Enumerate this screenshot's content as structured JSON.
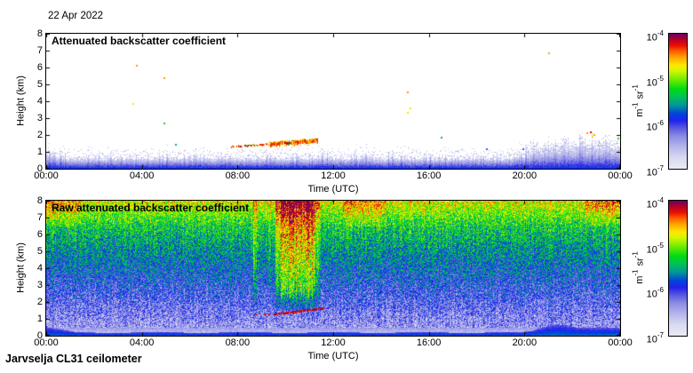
{
  "window": {
    "date_label": "22 Apr 2022",
    "footer_label": "Jarvselja CL31 ceilometer"
  },
  "axes": {
    "time": {
      "label": "Time (UTC)",
      "ticks": [
        "00:00",
        "04:00",
        "08:00",
        "12:00",
        "16:00",
        "20:00",
        "00:00"
      ]
    },
    "height": {
      "label": "Height (km)",
      "ticks": [
        "8",
        "7",
        "6",
        "5",
        "4",
        "3",
        "2",
        "1",
        "0"
      ]
    }
  },
  "colorbar": {
    "unit": {
      "m": "m",
      "m_exp": "-1",
      "sr": "sr",
      "sr_exp": "-1"
    },
    "ticks": [
      {
        "base": "10",
        "exp": "-4"
      },
      {
        "base": "10",
        "exp": "-5"
      },
      {
        "base": "10",
        "exp": "-6"
      },
      {
        "base": "10",
        "exp": "-7"
      }
    ]
  },
  "palette": {
    "colormap_stops": [
      [
        0.0,
        "#eaeaf6"
      ],
      [
        0.08,
        "#dadaf2"
      ],
      [
        0.16,
        "#b6b6ec"
      ],
      [
        0.24,
        "#8c8ce6"
      ],
      [
        0.3,
        "#5a5ae0"
      ],
      [
        0.355,
        "#2222f0"
      ],
      [
        0.41,
        "#0048d8"
      ],
      [
        0.47,
        "#009898"
      ],
      [
        0.53,
        "#00c05a"
      ],
      [
        0.59,
        "#00dc14"
      ],
      [
        0.66,
        "#6eec00"
      ],
      [
        0.73,
        "#d8f800"
      ],
      [
        0.77,
        "#ffe800"
      ],
      [
        0.83,
        "#ffa200"
      ],
      [
        0.875,
        "#ff5a00"
      ],
      [
        0.915,
        "#eb0f00"
      ],
      [
        0.96,
        "#b4002d"
      ],
      [
        1.0,
        "#70005f"
      ]
    ],
    "scatter_colors": {
      "orange": "#ff9800",
      "yellow": "#ffe000",
      "green": "#22cc22",
      "teal": "#00b090",
      "blue": "#3355ff",
      "red": "#e01000",
      "darkred": "#a50021"
    }
  },
  "chart_data": [
    {
      "type": "heatmap",
      "title": "Attenuated backscatter coefficient",
      "xlabel": "Time (UTC)",
      "ylabel": "Height (km)",
      "x_range_hours": [
        0,
        24
      ],
      "y_range_km": [
        0,
        8
      ],
      "x_tick_hours": [
        0,
        4,
        8,
        12,
        16,
        20,
        24
      ],
      "y_tick_km": [
        0,
        1,
        2,
        3,
        4,
        5,
        6,
        7,
        8
      ],
      "colorbar": {
        "min": "1e-7",
        "max": "1e-4",
        "scale": "log",
        "unit": "m^-1 sr^-1"
      },
      "background": "white",
      "boundary_layer": {
        "base_km": 0.52,
        "spike_km": 0.35,
        "morning_bump_until_h": 0.6,
        "morning_bump_km": 0.18,
        "evening_rise_start_h": 19.5,
        "evening_extra_km": 0.4
      },
      "aerosol_layer": {
        "t_start_h": 7.7,
        "t_solid_from_h": 9.3,
        "t_end_h": 11.35,
        "h_start_km": 1.28,
        "h_end_km": 1.65
      },
      "scatter_points": [
        [
          3.75,
          6.15,
          "orange"
        ],
        [
          4.9,
          5.4,
          "orange"
        ],
        [
          3.6,
          3.9,
          "yellow"
        ],
        [
          4.9,
          2.75,
          "green"
        ],
        [
          5.4,
          1.45,
          "teal"
        ],
        [
          21.0,
          6.9,
          "orange"
        ],
        [
          15.1,
          4.6,
          "orange"
        ],
        [
          15.2,
          3.65,
          "yellow"
        ],
        [
          15.1,
          3.35,
          "yellow"
        ],
        [
          16.5,
          1.9,
          "teal"
        ],
        [
          18.4,
          1.2,
          "blue"
        ],
        [
          19.9,
          1.2,
          "blue"
        ],
        [
          22.6,
          2.15,
          "orange"
        ],
        [
          22.75,
          2.2,
          "red"
        ],
        [
          22.9,
          2.05,
          "orange"
        ],
        [
          22.8,
          1.95,
          "yellow"
        ],
        [
          23.9,
          1.85,
          "green"
        ]
      ],
      "seed": 20220422
    },
    {
      "type": "heatmap",
      "title": "Raw attenuated backscatter coefficient",
      "xlabel": "Time (UTC)",
      "ylabel": "Height (km)",
      "x_range_hours": [
        0,
        24
      ],
      "y_range_km": [
        0,
        8
      ],
      "x_tick_hours": [
        0,
        4,
        8,
        12,
        16,
        20,
        24
      ],
      "y_tick_km": [
        0,
        1,
        2,
        3,
        4,
        5,
        6,
        7,
        8
      ],
      "colorbar": {
        "min": "1e-7",
        "max": "1e-4",
        "scale": "log",
        "unit": "m^-1 sr^-1"
      },
      "noise_field": {
        "base_v": 0.17,
        "v_per_km": 0.061,
        "noise_amp": 0.29,
        "top_extra_above_km": 6.5
      },
      "vertical_streaks": [
        {
          "t0": 8.62,
          "t1": 8.78,
          "boost": 0.13
        },
        {
          "t0": 9.28,
          "t1": 9.38,
          "boost": 0.09
        },
        {
          "t0": 9.55,
          "t1": 9.8,
          "boost": 0.18
        },
        {
          "t0": 9.8,
          "t1": 11.25,
          "boost": 0.28
        },
        {
          "t0": 11.25,
          "t1": 11.45,
          "boost": 0.12
        }
      ],
      "top_patches": [
        {
          "t0": 0.0,
          "t1": 1.4,
          "boost": 0.1
        },
        {
          "t0": 12.4,
          "t1": 14.2,
          "boost": 0.09
        },
        {
          "t0": 22.5,
          "t1": 24.0,
          "boost": 0.11
        }
      ],
      "aerosol_line": {
        "t_start_h": 9.5,
        "t_end_h": 11.6,
        "h_start_km": 1.3,
        "h_end_km": 1.66,
        "pre_dots_t": [
          8.72,
          9.1,
          9.3
        ],
        "pre_dots_h": 1.3
      },
      "ground_layer": {
        "base_km": 0.22,
        "morning_until_h": 1.2,
        "morning_extra_km": 0.3,
        "evening_rise_start_h": 19.8,
        "evening_extra_km": 0.25,
        "evening_hump_t": [
          20.3,
          22.3
        ],
        "evening_hump_km": 0.25
      },
      "seed": 31
    }
  ]
}
